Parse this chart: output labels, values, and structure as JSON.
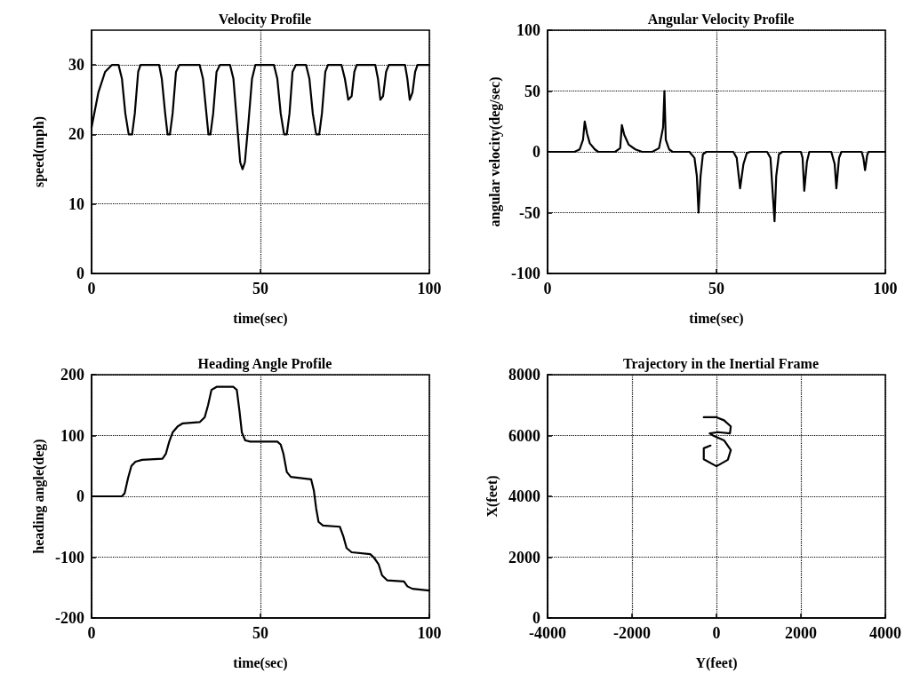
{
  "chart_data": [
    {
      "type": "line",
      "title": "Velocity Profile",
      "xlabel": "time(sec)",
      "ylabel": "speed(mph)",
      "xlim": [
        0,
        100
      ],
      "ylim": [
        0,
        35
      ],
      "xticks": [
        0,
        50,
        100
      ],
      "yticks": [
        0,
        10,
        20,
        30
      ],
      "grid": true,
      "line_style": "solid",
      "color": "#000000",
      "x": [
        0,
        2,
        4,
        6,
        8,
        9,
        10,
        11,
        12,
        12.8,
        13.8,
        14.5,
        20,
        20.8,
        21.8,
        22.5,
        23.2,
        24,
        25,
        26,
        32,
        33,
        34,
        34.6,
        35.2,
        36,
        37,
        38,
        41,
        42,
        43,
        44,
        44.7,
        45.4,
        46.5,
        47.5,
        48.5,
        54,
        55,
        56,
        57,
        57.8,
        58.6,
        59.5,
        60.5,
        63.5,
        64.5,
        65.5,
        66.5,
        67.4,
        68.2,
        69.2,
        70,
        74,
        75,
        76,
        77,
        77.8,
        78.5,
        84,
        84.8,
        85.5,
        86.3,
        87.2,
        88,
        92.8,
        93.5,
        94.2,
        95,
        95.8,
        96.5,
        100
      ],
      "values": [
        21,
        26,
        29,
        30,
        30,
        28,
        23,
        20,
        20,
        23,
        29,
        30,
        30,
        28,
        23,
        20,
        20,
        23,
        29,
        30,
        30,
        28,
        23,
        20,
        20,
        23,
        29,
        30,
        30,
        28,
        22,
        16,
        15,
        16,
        22,
        28,
        30,
        30,
        28,
        23,
        20,
        20,
        23,
        29,
        30,
        30,
        28,
        23,
        20,
        20,
        23,
        29,
        30,
        30,
        28,
        25,
        25.5,
        29,
        30,
        30,
        28,
        25,
        25.5,
        29,
        30,
        30,
        28,
        25,
        26,
        29,
        30,
        30
      ]
    },
    {
      "type": "line",
      "title": "Angular Velocity Profile",
      "xlabel": "time(sec)",
      "ylabel": "angular velocity(deg/sec)",
      "xlim": [
        0,
        100
      ],
      "ylim": [
        -100,
        100
      ],
      "xticks": [
        0,
        50,
        100
      ],
      "yticks": [
        -100,
        -50,
        0,
        50,
        100
      ],
      "grid": true,
      "line_style": "solid",
      "color": "#000000",
      "x": [
        0,
        8,
        9.5,
        10.5,
        11,
        11.7,
        12.5,
        14,
        15,
        20,
        21.5,
        22,
        22.7,
        24,
        26,
        28,
        31,
        33,
        34.2,
        34.6,
        35,
        36,
        37,
        42,
        43.5,
        44.2,
        44.7,
        45.3,
        46,
        47,
        55,
        56,
        57,
        58,
        59,
        60,
        65,
        66,
        66.8,
        67.2,
        67.7,
        68.5,
        69.5,
        75,
        75.5,
        76,
        76.8,
        77.5,
        84,
        85,
        85.5,
        86.3,
        87,
        93,
        93.5,
        94,
        94.6,
        95,
        100
      ],
      "values": [
        0,
        0,
        2,
        10,
        25,
        15,
        7,
        2,
        0,
        0,
        3,
        22,
        14,
        6,
        2,
        0,
        0,
        3,
        20,
        50,
        10,
        2,
        0,
        0,
        -5,
        -20,
        -50,
        -20,
        -2,
        0,
        0,
        -5,
        -30,
        -10,
        -1,
        0,
        0,
        -5,
        -40,
        -57,
        -20,
        -2,
        0,
        0,
        -5,
        -32,
        -8,
        0,
        0,
        -10,
        -30,
        -5,
        0,
        0,
        -5,
        -15,
        -3,
        0,
        0
      ]
    },
    {
      "type": "line",
      "title": "Heading Angle Profile",
      "xlabel": "time(sec)",
      "ylabel": "heading angle(deg)",
      "xlim": [
        0,
        100
      ],
      "ylim": [
        -200,
        200
      ],
      "xticks": [
        0,
        50,
        100
      ],
      "yticks": [
        -200,
        -100,
        0,
        100,
        200
      ],
      "grid": true,
      "line_style": "solid",
      "color": "#000000",
      "x": [
        0,
        9,
        9.8,
        10.8,
        11.8,
        13,
        15,
        21,
        22,
        23,
        24,
        25.5,
        27,
        32,
        33.5,
        34.5,
        35.5,
        37,
        42,
        43,
        43.8,
        44.5,
        45.5,
        47,
        55,
        56,
        56.8,
        57.8,
        59,
        65,
        65.8,
        66.5,
        67.2,
        68.5,
        73.5,
        74.5,
        75.5,
        77,
        82.5,
        83.5,
        85,
        86,
        87.5,
        92.5,
        93.5,
        95,
        100
      ],
      "values": [
        0,
        0,
        5,
        30,
        50,
        57,
        60,
        62,
        70,
        90,
        105,
        115,
        120,
        122,
        130,
        150,
        175,
        180,
        180,
        175,
        140,
        105,
        92,
        90,
        90,
        85,
        70,
        40,
        32,
        28,
        10,
        -20,
        -42,
        -48,
        -50,
        -65,
        -85,
        -92,
        -95,
        -100,
        -112,
        -130,
        -138,
        -140,
        -148,
        -152,
        -155
      ]
    },
    {
      "type": "line",
      "title": "Trajectory in the Inertial Frame",
      "xlabel": "Y(feet)",
      "ylabel": "X(feet)",
      "xlim": [
        -4000,
        4000
      ],
      "ylim": [
        0,
        8000
      ],
      "xticks": [
        -4000,
        -2000,
        0,
        2000,
        4000
      ],
      "yticks": [
        0,
        2000,
        4000,
        6000,
        8000
      ],
      "grid": true,
      "line_style": "solid",
      "color": "#000000",
      "x": [
        -140,
        -300,
        -300,
        0,
        270,
        340,
        180,
        -70,
        -160,
        40,
        320,
        340,
        180,
        0,
        -300
      ],
      "values": [
        5670,
        5580,
        5220,
        4990,
        5200,
        5520,
        5840,
        5990,
        6070,
        6110,
        6070,
        6300,
        6500,
        6600,
        6600
      ]
    }
  ]
}
